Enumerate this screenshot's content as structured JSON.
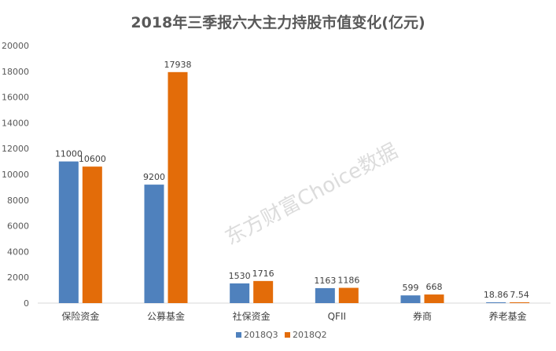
{
  "chart_data": {
    "type": "bar",
    "title": "2018年三季报六大主力持股市值变化(亿元)",
    "categories": [
      "保险资金",
      "公募基金",
      "社保资金",
      "QFII",
      "券商",
      "养老基金"
    ],
    "series": [
      {
        "name": "2018Q3",
        "values": [
          11000,
          9200,
          1530,
          1163,
          599,
          18.86
        ],
        "labels": [
          "11000",
          "9200",
          "1530",
          "1163",
          "599",
          "18.86"
        ],
        "color": "#4f81bd"
      },
      {
        "name": "2018Q2",
        "values": [
          10600,
          17938,
          1716,
          1186,
          668,
          7.54
        ],
        "labels": [
          "10600",
          "17938",
          "1716",
          "1186",
          "668",
          "7.54"
        ],
        "color": "#e36c09"
      }
    ],
    "yticks": [
      "0",
      "2000",
      "4000",
      "6000",
      "8000",
      "10000",
      "12000",
      "14000",
      "16000",
      "18000",
      "20000"
    ],
    "ylim": [
      0,
      20000
    ],
    "grid": false,
    "legend_position": "bottom",
    "watermark": "东方财富Choice数据"
  }
}
